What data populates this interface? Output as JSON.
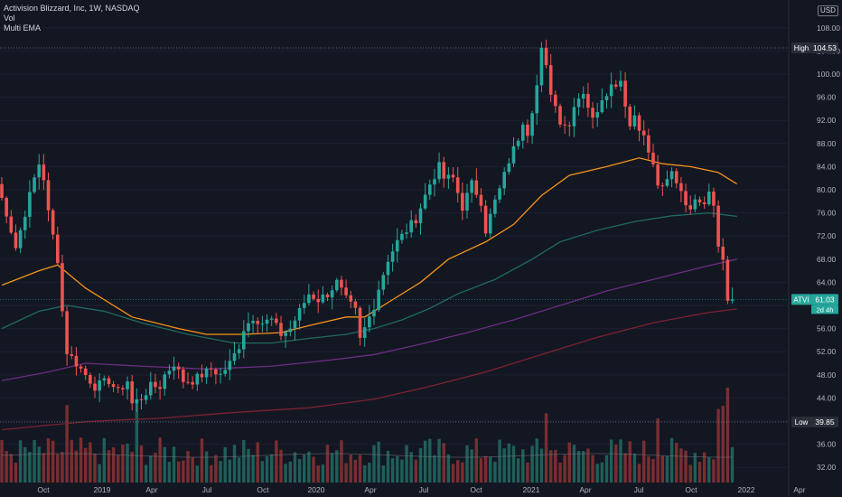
{
  "header": {
    "title": "Activision Blizzard, Inc, 1W, NASDAQ",
    "indicator_1": "Vol",
    "indicator_2": "Multi EMA",
    "currency": "USD"
  },
  "colors": {
    "background": "#131722",
    "up": "#26a69a",
    "down": "#ef5350",
    "ema_short": "#f7931a",
    "ema_mid": "#1f6b5e",
    "ema_long": "#6a2e82",
    "ema_longest": "#7b2230",
    "axis_text": "#b2b5be",
    "price_tag": "#26a69a"
  },
  "chart_data": {
    "type": "candlestick",
    "ticker": "ATVI",
    "interval": "1W",
    "exchange": "NASDAQ",
    "price_axis": {
      "ticks": [
        32,
        36,
        40,
        44,
        48,
        52,
        56,
        60,
        64,
        68,
        72,
        76,
        80,
        84,
        88,
        92,
        96,
        100,
        104,
        108
      ],
      "range": [
        30.5,
        112
      ]
    },
    "time_axis": {
      "labels": [
        "Oct",
        "2019",
        "Apr",
        "Jul",
        "Oct",
        "2020",
        "Apr",
        "Jul",
        "Oct",
        "2021",
        "Apr",
        "Jul",
        "Oct",
        "2022",
        "Apr"
      ]
    },
    "high": {
      "label": "High",
      "value": "104.53"
    },
    "low": {
      "label": "Low",
      "value": "39.85"
    },
    "last": {
      "symbol": "ATVI",
      "value": "61.03",
      "countdown": "2d 4h"
    },
    "close_path": [
      [
        0,
        81
      ],
      [
        2,
        76
      ],
      [
        4,
        70
      ],
      [
        6,
        76
      ],
      [
        8,
        82
      ],
      [
        9,
        84.5
      ],
      [
        10,
        82
      ],
      [
        11,
        76
      ],
      [
        13,
        68
      ],
      [
        14,
        59
      ],
      [
        15,
        52
      ],
      [
        17,
        50
      ],
      [
        19,
        48
      ],
      [
        21,
        46
      ],
      [
        24,
        47
      ],
      [
        26,
        45
      ],
      [
        28,
        47
      ],
      [
        29,
        43
      ],
      [
        31,
        44
      ],
      [
        33,
        46
      ],
      [
        35,
        46
      ],
      [
        36,
        48
      ],
      [
        38,
        50
      ],
      [
        40,
        47
      ],
      [
        42,
        47
      ],
      [
        44,
        48
      ],
      [
        46,
        49
      ],
      [
        48,
        48
      ],
      [
        50,
        50
      ],
      [
        52,
        53
      ],
      [
        53,
        56
      ],
      [
        55,
        58
      ],
      [
        57,
        57
      ],
      [
        59,
        57.5
      ],
      [
        61,
        55
      ],
      [
        63,
        56
      ],
      [
        65,
        59
      ],
      [
        67,
        62
      ],
      [
        69,
        61
      ],
      [
        71,
        62
      ],
      [
        73,
        64
      ],
      [
        75,
        61
      ],
      [
        77,
        59
      ],
      [
        78,
        54
      ],
      [
        79,
        56
      ],
      [
        80,
        58
      ],
      [
        81,
        60
      ],
      [
        82,
        63
      ],
      [
        84,
        68
      ],
      [
        86,
        71
      ],
      [
        88,
        73
      ],
      [
        90,
        75
      ],
      [
        92,
        79
      ],
      [
        93,
        81
      ],
      [
        95,
        84
      ],
      [
        96,
        82
      ],
      [
        98,
        82
      ],
      [
        100,
        77
      ],
      [
        102,
        81
      ],
      [
        104,
        78
      ],
      [
        105,
        73
      ],
      [
        107,
        78
      ],
      [
        108,
        80
      ],
      [
        110,
        85
      ],
      [
        112,
        89
      ],
      [
        113,
        92
      ],
      [
        114,
        90
      ],
      [
        116,
        98
      ],
      [
        117,
        104
      ],
      [
        118,
        101
      ],
      [
        119,
        97
      ],
      [
        121,
        92
      ],
      [
        123,
        91
      ],
      [
        124,
        95
      ],
      [
        126,
        97
      ],
      [
        128,
        92
      ],
      [
        130,
        96
      ],
      [
        132,
        98
      ],
      [
        134,
        99
      ],
      [
        136,
        91
      ],
      [
        137,
        93
      ],
      [
        139,
        89
      ],
      [
        141,
        84
      ],
      [
        142,
        81
      ],
      [
        143,
        80
      ],
      [
        145,
        83
      ],
      [
        147,
        80
      ],
      [
        149,
        76
      ],
      [
        150,
        79
      ],
      [
        152,
        78
      ],
      [
        153,
        80
      ],
      [
        154,
        78
      ],
      [
        155,
        70
      ],
      [
        156,
        68
      ],
      [
        157,
        61
      ]
    ],
    "ema_lines": [
      {
        "name": "EMA short",
        "color_key": "ema_short",
        "points": [
          [
            0,
            63.5
          ],
          [
            8,
            66
          ],
          [
            12,
            67
          ],
          [
            18,
            63
          ],
          [
            28,
            58
          ],
          [
            38,
            56
          ],
          [
            44,
            55
          ],
          [
            52,
            55
          ],
          [
            60,
            55.3
          ],
          [
            66,
            56.5
          ],
          [
            74,
            58
          ],
          [
            78,
            58
          ],
          [
            84,
            61
          ],
          [
            90,
            64
          ],
          [
            96,
            68
          ],
          [
            104,
            71
          ],
          [
            110,
            74
          ],
          [
            116,
            79
          ],
          [
            122,
            82.5
          ],
          [
            130,
            84
          ],
          [
            137,
            85.5
          ],
          [
            142,
            84.5
          ],
          [
            148,
            84
          ],
          [
            154,
            83
          ],
          [
            158,
            81
          ]
        ]
      },
      {
        "name": "EMA mid",
        "color_key": "ema_mid",
        "points": [
          [
            0,
            56
          ],
          [
            8,
            59
          ],
          [
            14,
            60
          ],
          [
            22,
            59
          ],
          [
            30,
            57
          ],
          [
            40,
            55
          ],
          [
            50,
            53.5
          ],
          [
            58,
            53.5
          ],
          [
            66,
            54.3
          ],
          [
            74,
            55
          ],
          [
            80,
            56
          ],
          [
            86,
            57.5
          ],
          [
            92,
            59.5
          ],
          [
            98,
            62
          ],
          [
            106,
            64.5
          ],
          [
            114,
            68
          ],
          [
            120,
            71
          ],
          [
            128,
            73
          ],
          [
            136,
            74.5
          ],
          [
            144,
            75.5
          ],
          [
            152,
            76
          ],
          [
            158,
            75.4
          ]
        ]
      },
      {
        "name": "EMA long",
        "color_key": "ema_long",
        "points": [
          [
            0,
            47
          ],
          [
            10,
            48.5
          ],
          [
            18,
            50
          ],
          [
            30,
            49.5
          ],
          [
            44,
            49
          ],
          [
            58,
            49.5
          ],
          [
            70,
            50.5
          ],
          [
            80,
            51.5
          ],
          [
            90,
            53.3
          ],
          [
            100,
            55.3
          ],
          [
            110,
            57.5
          ],
          [
            120,
            60
          ],
          [
            130,
            62.5
          ],
          [
            140,
            64.5
          ],
          [
            150,
            66.5
          ],
          [
            158,
            68
          ]
        ]
      },
      {
        "name": "EMA longest",
        "color_key": "ema_longest",
        "points": [
          [
            0,
            38.5
          ],
          [
            10,
            39.3
          ],
          [
            20,
            40
          ],
          [
            34,
            40.5
          ],
          [
            50,
            41.5
          ],
          [
            66,
            42.3
          ],
          [
            80,
            43.8
          ],
          [
            92,
            46
          ],
          [
            104,
            48.5
          ],
          [
            116,
            51.5
          ],
          [
            128,
            54.5
          ],
          [
            140,
            57
          ],
          [
            152,
            58.8
          ],
          [
            158,
            59.4
          ]
        ]
      }
    ]
  }
}
